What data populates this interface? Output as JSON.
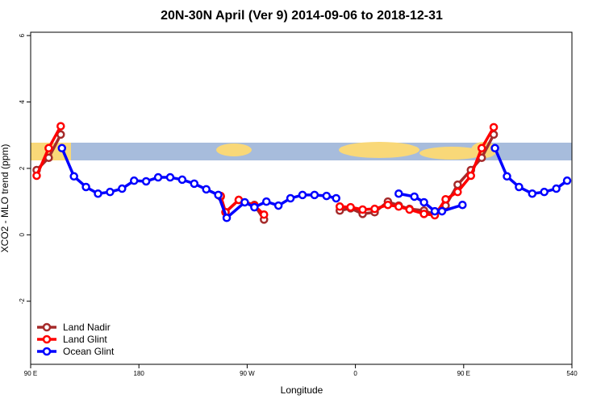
{
  "chart_data": {
    "type": "line",
    "title": "20N-30N April (Ver 9)   2014-09-06 to 2018-12-31",
    "x_label": "Longitude",
    "y_label": "XCO2 - MLO trend (ppm)",
    "xlim": [
      90,
      540
    ],
    "ylim": [
      -3.9,
      6.1
    ],
    "xticks": [
      {
        "value": 90,
        "label": "90 E"
      },
      180,
      {
        "value": 270,
        "label": "90 W"
      },
      {
        "value": 360,
        "label": "0"
      },
      {
        "value": 450,
        "label": "90 E"
      },
      540
    ],
    "yticks": [
      -2,
      0,
      2,
      4,
      6
    ],
    "legend": "bottom-left",
    "series": [
      {
        "name": "Land Nadir",
        "color": "#a52a2a",
        "x": [
          95,
          105,
          115,
          null,
          248,
          252,
          263,
          276,
          284,
          null,
          347,
          356,
          366,
          376,
          387,
          396,
          405,
          417,
          426,
          435,
          445,
          456,
          465,
          475
        ],
        "values": [
          1.95,
          2.32,
          3.02,
          null,
          1.15,
          0.68,
          1.05,
          0.9,
          0.46,
          null,
          0.73,
          0.8,
          0.63,
          0.68,
          1.0,
          0.88,
          0.78,
          0.73,
          0.61,
          0.88,
          1.51,
          1.95,
          2.32,
          3.02
        ]
      },
      {
        "name": "Land Glint",
        "color": "#ff0000",
        "x": [
          95,
          105,
          115,
          null,
          248,
          252,
          263,
          276,
          284,
          null,
          347,
          356,
          366,
          376,
          387,
          396,
          405,
          417,
          426,
          435,
          445,
          456,
          465,
          475
        ],
        "values": [
          1.78,
          2.61,
          3.27,
          null,
          1.17,
          0.68,
          1.05,
          0.88,
          0.61,
          null,
          0.85,
          0.83,
          0.76,
          0.78,
          0.9,
          0.85,
          0.76,
          0.63,
          0.59,
          1.07,
          1.29,
          1.78,
          2.61,
          3.24
        ]
      },
      {
        "name": "Ocean Glint",
        "color": "#0000ff",
        "x": [
          116,
          126,
          136,
          146,
          156,
          166,
          176,
          186,
          196,
          206,
          216,
          226,
          236,
          246,
          253,
          268,
          276,
          286,
          296,
          306,
          316,
          326,
          336,
          344,
          null,
          396,
          409,
          417,
          426,
          432,
          449,
          null,
          476,
          486,
          496,
          507,
          517,
          527,
          536
        ],
        "values": [
          2.61,
          1.76,
          1.44,
          1.24,
          1.29,
          1.39,
          1.63,
          1.61,
          1.73,
          1.73,
          1.66,
          1.54,
          1.37,
          1.2,
          0.51,
          0.98,
          0.83,
          1.0,
          0.88,
          1.1,
          1.2,
          1.2,
          1.17,
          1.1,
          null,
          1.24,
          1.15,
          0.98,
          0.71,
          0.71,
          0.9,
          null,
          2.61,
          1.76,
          1.44,
          1.24,
          1.29,
          1.39,
          1.63
        ]
      }
    ]
  }
}
